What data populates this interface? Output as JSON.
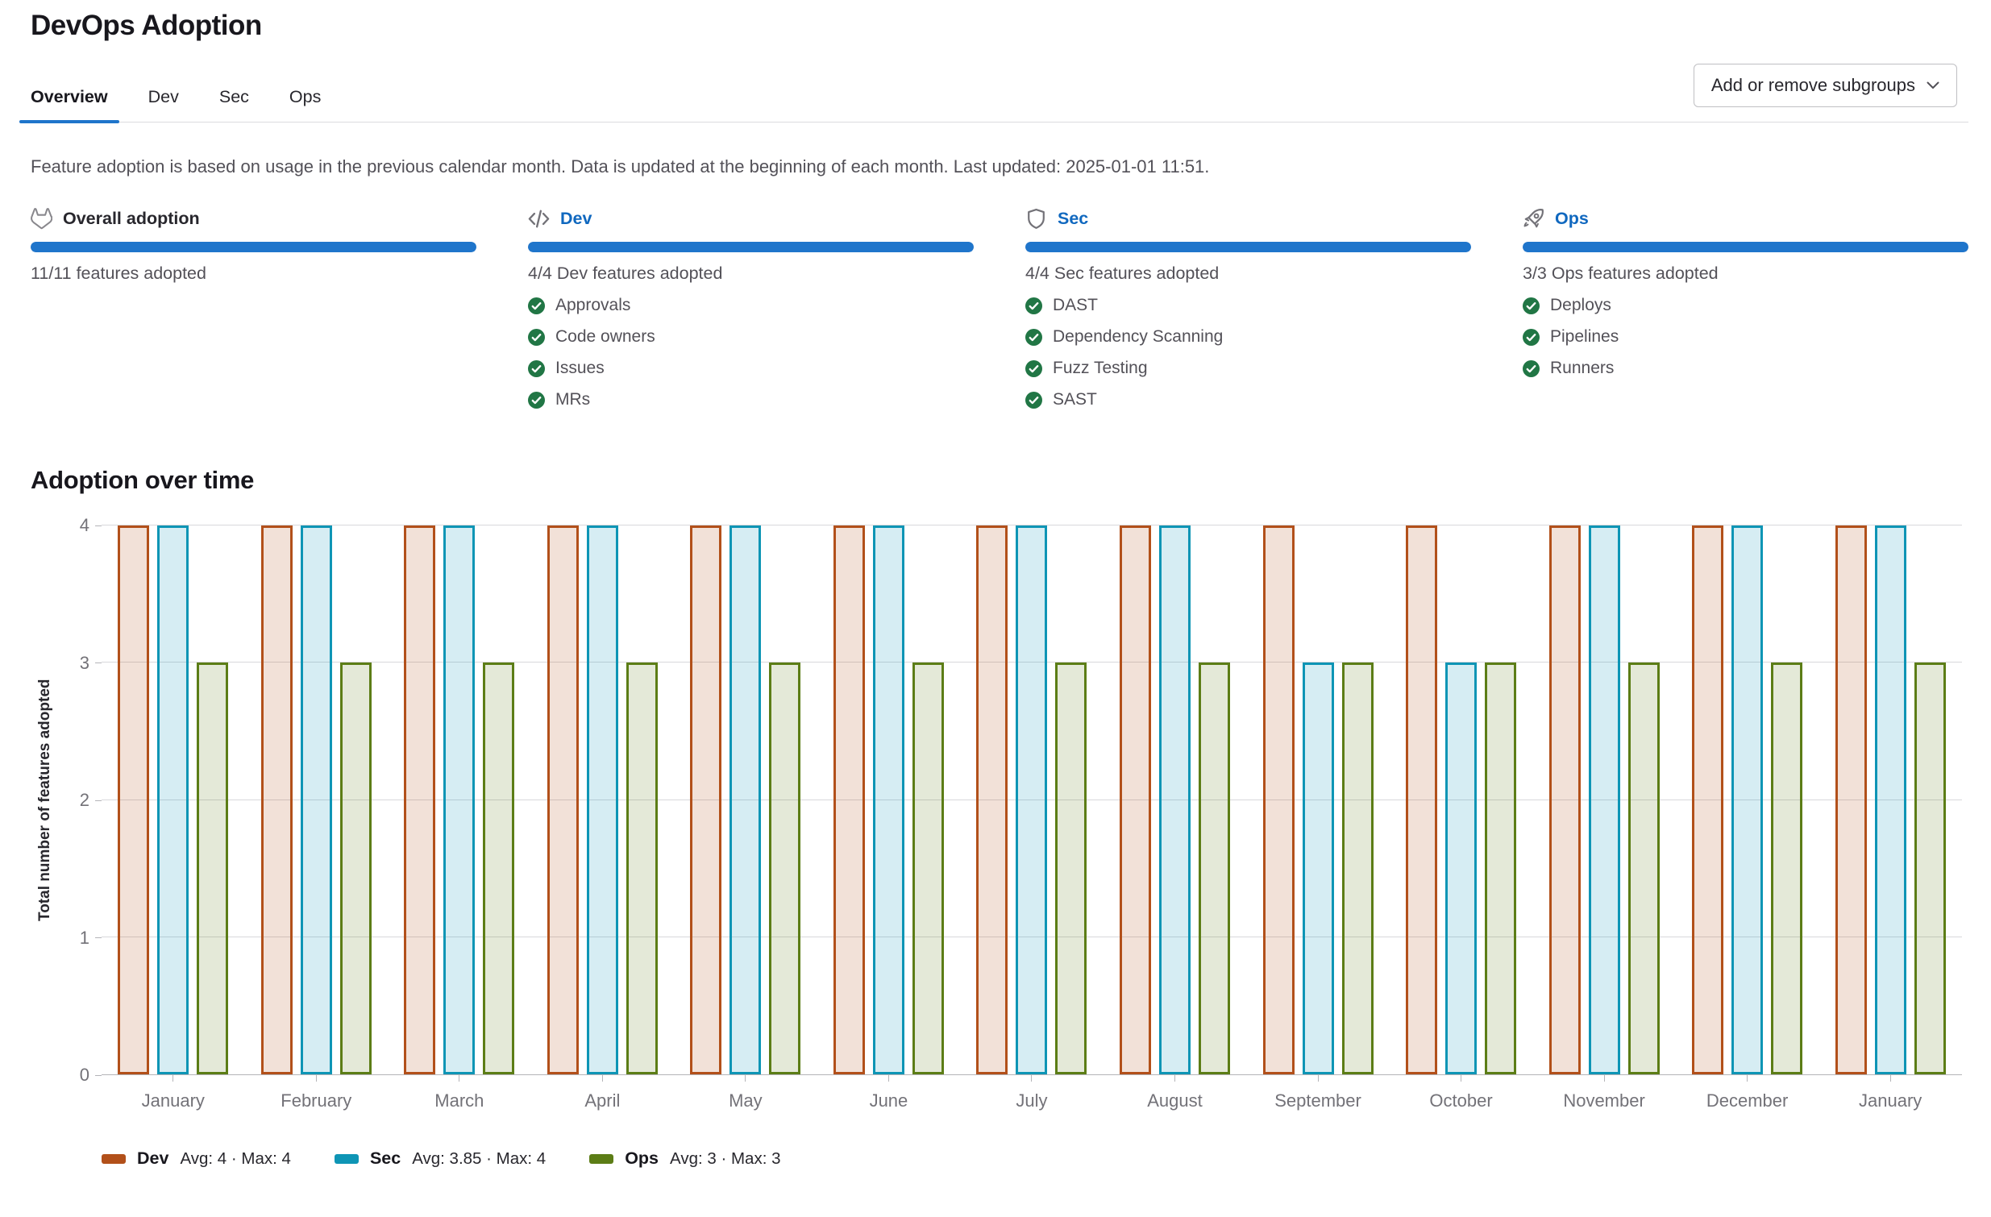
{
  "page": {
    "title": "DevOps Adoption"
  },
  "tabs": [
    {
      "label": "Overview",
      "active": true
    },
    {
      "label": "Dev",
      "active": false
    },
    {
      "label": "Sec",
      "active": false
    },
    {
      "label": "Ops",
      "active": false
    }
  ],
  "subgroups_button": {
    "label": "Add or remove subgroups",
    "icon": "chevron-down-icon"
  },
  "info_text": "Feature adoption is based on usage in the previous calendar month. Data is updated at the beginning of each month. Last updated: 2025-01-01 11:51.",
  "summary_cards": [
    {
      "icon": "tanuki-icon",
      "title": "Overall adoption",
      "is_link": false,
      "progress_percent": 100,
      "count_text": "11/11 features adopted",
      "features": []
    },
    {
      "icon": "code-icon",
      "title": "Dev",
      "is_link": true,
      "progress_percent": 100,
      "count_text": "4/4 Dev features adopted",
      "features": [
        "Approvals",
        "Code owners",
        "Issues",
        "MRs"
      ]
    },
    {
      "icon": "shield-icon",
      "title": "Sec",
      "is_link": true,
      "progress_percent": 100,
      "count_text": "4/4 Sec features adopted",
      "features": [
        "DAST",
        "Dependency Scanning",
        "Fuzz Testing",
        "SAST"
      ]
    },
    {
      "icon": "rocket-icon",
      "title": "Ops",
      "is_link": true,
      "progress_percent": 100,
      "count_text": "3/3 Ops features adopted",
      "features": [
        "Deploys",
        "Pipelines",
        "Runners"
      ]
    }
  ],
  "section_title": "Adoption over time",
  "chart_data": {
    "type": "bar",
    "title": "Adoption over time",
    "xlabel": "",
    "ylabel": "Total number of features adopted",
    "ylim": [
      0,
      4
    ],
    "yticks": [
      0,
      1,
      2,
      3,
      4
    ],
    "grid": true,
    "legend_position": "bottom",
    "categories": [
      "January",
      "February",
      "March",
      "April",
      "May",
      "June",
      "July",
      "August",
      "September",
      "October",
      "November",
      "December",
      "January"
    ],
    "series": [
      {
        "name": "Dev",
        "color": "#b2501a",
        "avg": 4,
        "max": 4,
        "values": [
          4,
          4,
          4,
          4,
          4,
          4,
          4,
          4,
          4,
          4,
          4,
          4,
          4
        ]
      },
      {
        "name": "Sec",
        "color": "#0e95b5",
        "avg": 3.85,
        "max": 4,
        "values": [
          4,
          4,
          4,
          4,
          4,
          4,
          4,
          4,
          3,
          3,
          4,
          4,
          4
        ]
      },
      {
        "name": "Ops",
        "color": "#5c7d16",
        "avg": 3,
        "max": 3,
        "values": [
          3,
          3,
          3,
          3,
          3,
          3,
          3,
          3,
          3,
          3,
          3,
          3,
          3
        ]
      }
    ],
    "legend": [
      {
        "name": "Dev",
        "stats": "Avg: 4 · Max: 4"
      },
      {
        "name": "Sec",
        "stats": "Avg: 3.85 · Max: 4"
      },
      {
        "name": "Ops",
        "stats": "Avg: 3 · Max: 3"
      }
    ]
  },
  "colors": {
    "accent_blue": "#1f75cb",
    "link_blue": "#1068bf",
    "success_green": "#217645",
    "gridline": "#d8d8db",
    "axis": "#b4b4b8"
  }
}
